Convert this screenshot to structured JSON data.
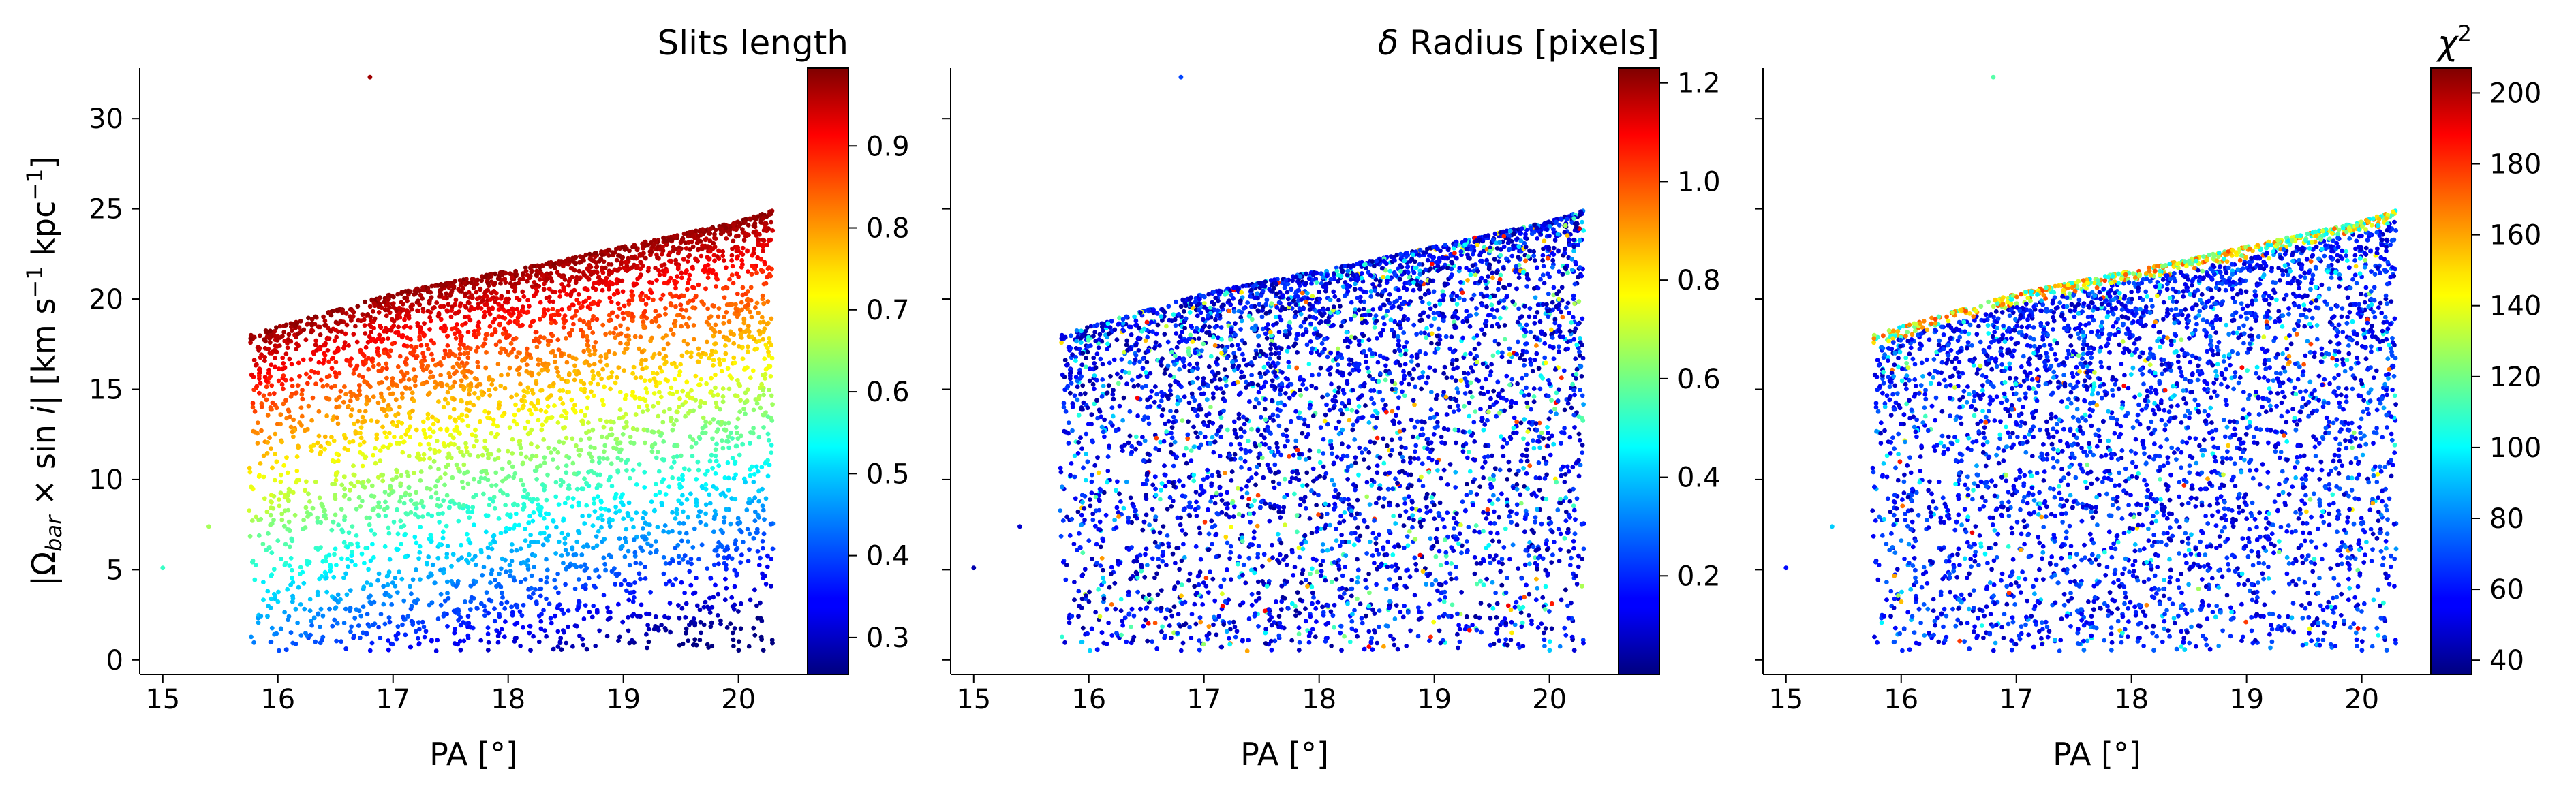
{
  "chart_data": [
    {
      "type": "scatter",
      "panel": 1,
      "xlabel": "PA [°]",
      "ylabel": "|Ω_bar × sin i|   [km s⁻¹ kpc⁻¹]",
      "xlim": [
        14.8,
        20.6
      ],
      "ylim": [
        -0.8,
        32.8
      ],
      "xticks": [
        15,
        16,
        17,
        18,
        19,
        20
      ],
      "yticks": [
        0,
        5,
        10,
        15,
        20,
        25,
        30
      ],
      "colorbar": {
        "title": "Slits length",
        "colormap": "jet",
        "range": [
          0.255,
          0.995
        ],
        "ticks": [
          0.3,
          0.4,
          0.5,
          0.6,
          0.7,
          0.8,
          0.9
        ]
      },
      "distribution_note": "~4000 points; color increases with height below the upper edge",
      "upper_edge": [
        [
          15.75,
          18.0
        ],
        [
          17.0,
          20.3
        ],
        [
          18.5,
          22.2
        ],
        [
          20.0,
          24.3
        ],
        [
          20.35,
          25.0
        ]
      ],
      "outliers": [
        [
          16.8,
          32.3
        ],
        [
          15.0,
          5.1
        ],
        [
          15.4,
          7.4
        ],
        [
          19.6,
          11.3
        ]
      ]
    },
    {
      "type": "scatter",
      "panel": 2,
      "xlabel": "PA [°]",
      "ylabel": "",
      "xlim": [
        14.8,
        20.6
      ],
      "ylim": [
        -0.8,
        32.8
      ],
      "xticks": [
        15,
        16,
        17,
        18,
        19,
        20
      ],
      "colorbar": {
        "title": "δ Radius [pixels]",
        "colormap": "jet",
        "range": [
          0.0,
          1.23
        ],
        "ticks": [
          0.2,
          0.4,
          0.6,
          0.8,
          1.0,
          1.2
        ]
      },
      "distribution_note": "same positions; mostly low values (0.0-0.3) with sparse cyan/green",
      "outliers": [
        [
          16.8,
          32.3
        ],
        [
          15.0,
          5.1
        ],
        [
          15.4,
          7.4
        ],
        [
          19.6,
          11.3
        ]
      ]
    },
    {
      "type": "scatter",
      "panel": 3,
      "xlabel": "PA [°]",
      "ylabel": "",
      "xlim": [
        14.8,
        20.6
      ],
      "ylim": [
        -0.8,
        32.8
      ],
      "xticks": [
        15,
        16,
        17,
        18,
        19,
        20
      ],
      "colorbar": {
        "title": "χ²",
        "colormap": "jet",
        "range": [
          36,
          207
        ],
        "ticks": [
          40,
          60,
          80,
          100,
          120,
          140,
          160,
          180,
          200
        ]
      },
      "distribution_note": "same positions; mostly ~50-70 with cyan/orange band along the upper edge",
      "outliers": [
        [
          16.8,
          32.3
        ],
        [
          15.0,
          5.1
        ],
        [
          15.4,
          7.4
        ],
        [
          19.6,
          11.3
        ]
      ]
    }
  ]
}
